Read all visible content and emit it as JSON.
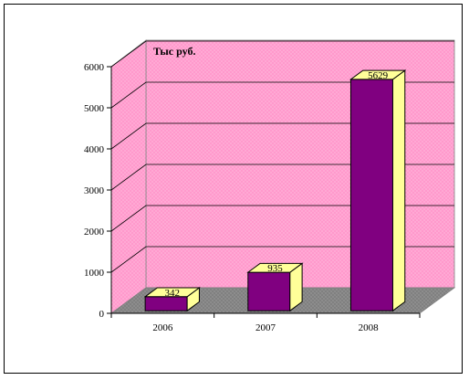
{
  "chart_data": {
    "type": "bar",
    "categories": [
      "2006",
      "2007",
      "2008"
    ],
    "values": [
      342,
      935,
      5629
    ],
    "data_labels": [
      "342",
      "935",
      "5629"
    ],
    "title": "",
    "unit_label": "Тыс руб.",
    "xlabel": "",
    "ylabel": "",
    "ylim": [
      0,
      6000
    ],
    "yticks": [
      "0",
      "1000",
      "2000",
      "3000",
      "4000",
      "5000",
      "6000"
    ],
    "grid": true,
    "legend": "none",
    "three_d": true
  },
  "colors": {
    "wall": "#ff99cc",
    "floor": "#808080",
    "bar_front": "#800080",
    "bar_side": "#ffff99",
    "bar_top": "#ffff99"
  }
}
